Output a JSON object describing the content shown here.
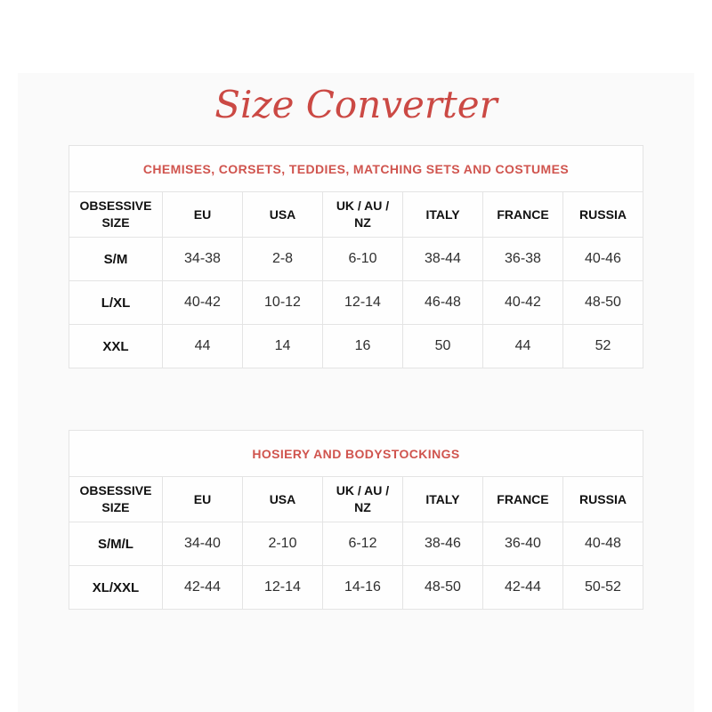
{
  "page": {
    "title": "Size Converter",
    "accent_color": "#cb4944",
    "table_title_color": "#d0544e"
  },
  "tables": [
    {
      "title": "CHEMISES, CORSETS, TEDDIES, MATCHING SETS AND COSTUMES",
      "columns": [
        "OBSESSIVE SIZE",
        "EU",
        "USA",
        "UK / AU / NZ",
        "ITALY",
        "FRANCE",
        "RUSSIA"
      ],
      "rows": [
        {
          "label": "S/M",
          "cells": [
            "34-38",
            "2-8",
            "6-10",
            "38-44",
            "36-38",
            "40-46"
          ]
        },
        {
          "label": "L/XL",
          "cells": [
            "40-42",
            "10-12",
            "12-14",
            "46-48",
            "40-42",
            "48-50"
          ]
        },
        {
          "label": "XXL",
          "cells": [
            "44",
            "14",
            "16",
            "50",
            "44",
            "52"
          ]
        }
      ]
    },
    {
      "title": "HOSIERY AND BODYSTOCKINGS",
      "columns": [
        "OBSESSIVE SIZE",
        "EU",
        "USA",
        "UK / AU / NZ",
        "ITALY",
        "FRANCE",
        "RUSSIA"
      ],
      "rows": [
        {
          "label": "S/M/L",
          "cells": [
            "34-40",
            "2-10",
            "6-12",
            "38-46",
            "36-40",
            "40-48"
          ]
        },
        {
          "label": "XL/XXL",
          "cells": [
            "42-44",
            "12-14",
            "14-16",
            "48-50",
            "42-44",
            "50-52"
          ]
        }
      ]
    }
  ]
}
